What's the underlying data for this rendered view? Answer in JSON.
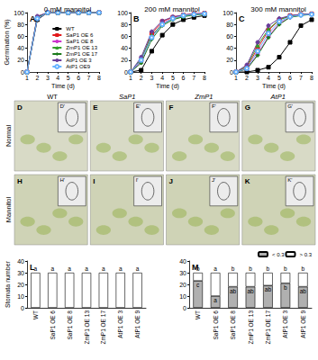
{
  "chart_data": [
    {
      "type": "line",
      "title": "0 mM mannitol",
      "panel_label": "A",
      "x_label": "Time (d)",
      "y_label": "Germination (%)",
      "x": [
        1,
        2,
        3,
        4,
        5,
        6,
        7,
        8
      ],
      "xlim": [
        1,
        8
      ],
      "xticks": [
        1,
        2,
        3,
        4,
        5,
        6,
        7,
        8
      ],
      "ylim": [
        0,
        100
      ],
      "yticks": [
        0,
        20,
        40,
        60,
        80,
        100
      ],
      "grid": false,
      "legend": "lower right",
      "series": [
        {
          "name": "WT",
          "color": "#000000",
          "marker": "rect",
          "values": [
            0,
            88,
            100,
            100,
            100,
            100,
            100,
            100
          ]
        },
        {
          "name": "SaP1 OE 6",
          "color": "#e31a1c",
          "marker": "rect",
          "values": [
            0,
            92,
            100,
            100,
            100,
            100,
            100,
            100
          ]
        },
        {
          "name": "SaP1 OE 8",
          "color": "#cc33cc",
          "marker": "circle",
          "values": [
            0,
            90,
            100,
            100,
            100,
            100,
            100,
            100
          ]
        },
        {
          "name": "ZmP1 OE 13",
          "color": "#33a02c",
          "marker": "triangle",
          "values": [
            0,
            93,
            100,
            100,
            100,
            100,
            100,
            100
          ]
        },
        {
          "name": "ZmP1 OE 17",
          "color": "#1a7a1a",
          "marker": "diamond",
          "values": [
            0,
            91,
            100,
            100,
            100,
            100,
            100,
            100
          ]
        },
        {
          "name": "AtP1 OE 3",
          "color": "#6a3d9a",
          "marker": "circle",
          "values": [
            0,
            94,
            100,
            100,
            100,
            100,
            100,
            100
          ]
        },
        {
          "name": "AtP1 OE9",
          "color": "#66b3ff",
          "marker": "emptyCircle",
          "values": [
            0,
            90,
            100,
            100,
            100,
            100,
            100,
            100
          ]
        }
      ]
    },
    {
      "type": "line",
      "title": "200 mM mannitol",
      "panel_label": "B",
      "x_label": "Time (d)",
      "x": [
        1,
        2,
        3,
        4,
        5,
        6,
        7,
        8
      ],
      "xlim": [
        1,
        8
      ],
      "xticks": [
        1,
        2,
        3,
        4,
        5,
        6,
        7,
        8
      ],
      "ylim": [
        0,
        100
      ],
      "yticks": [
        0,
        20,
        40,
        60,
        80,
        100
      ],
      "grid": false,
      "series": [
        {
          "name": "WT",
          "color": "#000000",
          "marker": "rect",
          "values": [
            0,
            3,
            35,
            62,
            80,
            88,
            92,
            95
          ]
        },
        {
          "name": "SaP1 OE 6",
          "color": "#e31a1c",
          "marker": "rect",
          "values": [
            0,
            20,
            65,
            85,
            92,
            96,
            98,
            99
          ]
        },
        {
          "name": "SaP1 OE 8",
          "color": "#cc33cc",
          "marker": "circle",
          "values": [
            0,
            18,
            60,
            82,
            90,
            95,
            97,
            98
          ]
        },
        {
          "name": "ZmP1 OE 13",
          "color": "#33a02c",
          "marker": "triangle",
          "values": [
            0,
            22,
            62,
            80,
            90,
            94,
            97,
            98
          ]
        },
        {
          "name": "ZmP1 OE 17",
          "color": "#1a7a1a",
          "marker": "diamond",
          "values": [
            0,
            15,
            55,
            78,
            88,
            93,
            96,
            97
          ]
        },
        {
          "name": "AtP1 OE 3",
          "color": "#6a3d9a",
          "marker": "circle",
          "values": [
            0,
            25,
            68,
            86,
            93,
            96,
            98,
            99
          ]
        },
        {
          "name": "AtP1 OE9",
          "color": "#66b3ff",
          "marker": "emptyCircle",
          "values": [
            0,
            20,
            58,
            80,
            90,
            95,
            97,
            98
          ]
        }
      ]
    },
    {
      "type": "line",
      "title": "300 mM mannitol",
      "panel_label": "C",
      "x_label": "Time (d)",
      "x": [
        1,
        2,
        3,
        4,
        5,
        6,
        7,
        8
      ],
      "xlim": [
        1,
        8
      ],
      "xticks": [
        1,
        2,
        3,
        4,
        5,
        6,
        7,
        8
      ],
      "ylim": [
        0,
        100
      ],
      "yticks": [
        0,
        20,
        40,
        60,
        80,
        100
      ],
      "grid": false,
      "series": [
        {
          "name": "WT",
          "color": "#000000",
          "marker": "rect",
          "values": [
            0,
            0,
            3,
            8,
            25,
            50,
            78,
            88
          ]
        },
        {
          "name": "SaP1 OE 6",
          "color": "#e31a1c",
          "marker": "rect",
          "values": [
            0,
            8,
            40,
            70,
            88,
            95,
            97,
            98
          ]
        },
        {
          "name": "SaP1 OE 8",
          "color": "#cc33cc",
          "marker": "circle",
          "values": [
            0,
            5,
            30,
            60,
            82,
            92,
            96,
            97
          ]
        },
        {
          "name": "ZmP1 OE 13",
          "color": "#33a02c",
          "marker": "triangle",
          "values": [
            0,
            10,
            45,
            72,
            88,
            94,
            97,
            98
          ]
        },
        {
          "name": "ZmP1 OE 17",
          "color": "#1a7a1a",
          "marker": "diamond",
          "values": [
            0,
            5,
            28,
            58,
            80,
            92,
            95,
            97
          ]
        },
        {
          "name": "AtP1 OE 3",
          "color": "#6a3d9a",
          "marker": "circle",
          "values": [
            0,
            12,
            50,
            78,
            90,
            95,
            97,
            98
          ]
        },
        {
          "name": "AtP1 OE9",
          "color": "#66b3ff",
          "marker": "emptyCircle",
          "values": [
            0,
            6,
            35,
            65,
            85,
            93,
            96,
            97
          ]
        }
      ]
    },
    {
      "type": "bar",
      "panel_label": "L",
      "y_label": "Stomata number",
      "categories": [
        "WT",
        "SaP1 OE 6",
        "SaP1 OE 8",
        "ZmP1 OE 13",
        "ZmP1 OE 17",
        "AtP1 OE 3",
        "AtP1 OE 9"
      ],
      "ylim": [
        0,
        40
      ],
      "yticks": [
        0,
        10,
        20,
        30,
        40
      ],
      "grid": false,
      "series": [
        {
          "color": "#ffffff",
          "values": [
            30,
            30,
            30,
            30,
            30,
            30,
            30
          ],
          "annotations": [
            "a",
            "a",
            "a",
            "a",
            "a",
            "a",
            "a"
          ]
        }
      ]
    },
    {
      "type": "bar",
      "panel_label": "M",
      "stacked": true,
      "legend": "upper right",
      "categories": [
        "WT",
        "SaP1 OE 6",
        "SaP1 OE 8",
        "ZmP1 OE 13",
        "ZmP1 OE 17",
        "AtP1 OE 3",
        "AtP1 OE 9"
      ],
      "ylim": [
        0,
        40
      ],
      "yticks": [
        0,
        10,
        20,
        30,
        40
      ],
      "grid": false,
      "series": [
        {
          "name": "< 0.3",
          "color": "#b0b0b0",
          "values": [
            23,
            10,
            18,
            18,
            19,
            21,
            18
          ],
          "annotations": [
            "c",
            "a",
            "ab",
            "ab",
            "ab",
            "b",
            "ab"
          ]
        },
        {
          "name": "> 0.3",
          "color": "#ffffff",
          "values": [
            7,
            20,
            12,
            12,
            11,
            9,
            12
          ],
          "annotations": [
            "b",
            "a",
            "b",
            "b",
            "b",
            "b",
            "b"
          ]
        }
      ]
    }
  ],
  "micrographs": {
    "columns": [
      "WT",
      "SaP1",
      "ZmP1",
      "AtP1"
    ],
    "rows": [
      "Normal",
      "Mannitol"
    ],
    "panels": [
      [
        "D",
        "E",
        "F",
        "G"
      ],
      [
        "H",
        "I",
        "J",
        "K"
      ]
    ],
    "insets": [
      [
        "D'",
        "E'",
        "F'",
        "G'"
      ],
      [
        "H'",
        "I'",
        "J'",
        "K'"
      ]
    ]
  }
}
